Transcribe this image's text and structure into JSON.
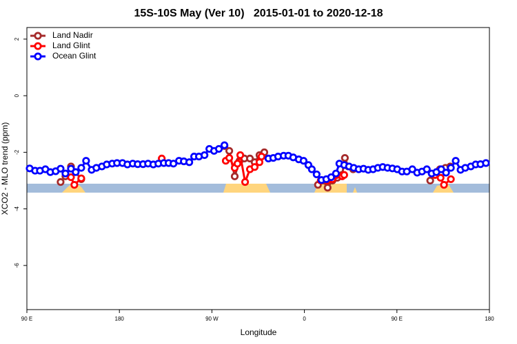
{
  "chart_data": {
    "type": "line",
    "title": "15S-10S May (Ver 10)   2015-01-01 to 2020-12-18",
    "x_label": "Longitude",
    "y_label": "XCO2 - MLO trend (ppm)",
    "xlim": [
      90,
      540
    ],
    "xticks": [
      {
        "value": 90,
        "label": "90 E"
      },
      {
        "value": 180,
        "label": "180"
      },
      {
        "value": 270,
        "label": "90 W"
      },
      {
        "value": 360,
        "label": "0"
      },
      {
        "value": 450,
        "label": "90 E"
      },
      {
        "value": 540,
        "label": "180"
      }
    ],
    "ylim": [
      -7.56,
      2.41
    ],
    "yticks": [
      -6,
      -4,
      -2,
      0,
      2
    ],
    "legend": "top-left",
    "series": [
      {
        "name": "Land Nadir",
        "color": "#a52a2a",
        "x": [
          122.8,
          127.5,
          132.9,
          142.9,
          null,
          282.2,
          286.9,
          292.2,
          296.9,
          301.6,
          307,
          311.6,
          316.3,
          321,
          null,
          373.2,
          377.9,
          382.6,
          387.3,
          392,
          396.7,
          399.4,
          402.7,
          407.4,
          null,
          482.4,
          487.1,
          491.8,
          497.2,
          501.9
        ],
        "values": [
          -3.05,
          -2.85,
          -2.5,
          -2.95,
          null,
          -1.78,
          -1.95,
          -2.85,
          -2.3,
          -2.22,
          -2.22,
          -2.35,
          -2.1,
          -2.0,
          null,
          -3.15,
          -3.0,
          -3.25,
          -3.0,
          -2.9,
          -2.8,
          -2.2,
          -2.5,
          -2.6,
          null,
          -3.0,
          -2.8,
          -2.6,
          -2.55,
          -2.5
        ]
      },
      {
        "name": "Land Glint",
        "color": "#ff0000",
        "x": [
          132.9,
          136.2,
          142.9,
          null,
          221.2,
          null,
          283.5,
          286.9,
          292.2,
          294.9,
          297.6,
          302.3,
          307,
          311.6,
          316.3,
          318.3,
          null,
          375.9,
          382.6,
          387.3,
          396.7,
          398.7,
          null,
          487.1,
          492.5,
          495.8,
          502.5
        ],
        "values": [
          -2.88,
          -3.15,
          -2.92,
          null,
          -2.22,
          null,
          -2.3,
          -2.2,
          -2.55,
          -2.4,
          -2.1,
          -3.05,
          -2.6,
          -2.52,
          -2.35,
          -2.15,
          null,
          -3.0,
          -3.0,
          -2.95,
          -2.85,
          -2.8,
          null,
          -2.8,
          -2.9,
          -3.15,
          -2.95
        ]
      },
      {
        "name": "Ocean Glint",
        "color": "#0000ff",
        "x": [
          92.7,
          98,
          102.7,
          108,
          112.8,
          118,
          122.8,
          127.5,
          132.9,
          137.5,
          142.9,
          147.6,
          153,
          157.6,
          163,
          167.7,
          173,
          177.7,
          183,
          187.8,
          193,
          197.8,
          203,
          207.9,
          213,
          217.9,
          223.2,
          227.9,
          232.6,
          238,
          242.7,
          248,
          252.7,
          257.4,
          262.8,
          267.5,
          272.1,
          276.8,
          282.2,
          null,
          325,
          329.7,
          334.4,
          339.8,
          344.4,
          349.1,
          354.5,
          359.2,
          363.9,
          367.2,
          371.9,
          376.6,
          381.3,
          386,
          390.7,
          394,
          398.7,
          403.4,
          408,
          412.8,
          417.5,
          422.1,
          426.8,
          431.5,
          436.2,
          440.9,
          445.6,
          450.3,
          455,
          459.6,
          465,
          469.7,
          474.4,
          479.1,
          483.8,
          488.4,
          493.1,
          497.8,
          502.5,
          507.2,
          511.9,
          516.5,
          521.9,
          526.6,
          531.3,
          536.6
        ],
        "values": [
          -2.57,
          -2.65,
          -2.65,
          -2.6,
          -2.7,
          -2.67,
          -2.58,
          -2.75,
          -2.58,
          -2.7,
          -2.55,
          -2.3,
          -2.62,
          -2.55,
          -2.5,
          -2.43,
          -2.4,
          -2.38,
          -2.38,
          -2.43,
          -2.4,
          -2.42,
          -2.42,
          -2.4,
          -2.43,
          -2.4,
          -2.38,
          -2.38,
          -2.4,
          -2.3,
          -2.32,
          -2.35,
          -2.15,
          -2.15,
          -2.1,
          -1.88,
          -1.95,
          -1.88,
          -1.75,
          null,
          -2.22,
          -2.2,
          -2.15,
          -2.12,
          -2.12,
          -2.18,
          -2.25,
          -2.3,
          -2.45,
          -2.6,
          -2.78,
          -2.98,
          -2.95,
          -2.88,
          -2.75,
          -2.4,
          -2.45,
          -2.5,
          -2.55,
          -2.6,
          -2.58,
          -2.62,
          -2.6,
          -2.55,
          -2.52,
          -2.55,
          -2.57,
          -2.6,
          -2.68,
          -2.68,
          -2.6,
          -2.72,
          -2.68,
          -2.6,
          -2.75,
          -2.7,
          -2.6,
          -2.72,
          -2.55,
          -2.3,
          -2.62,
          -2.55,
          -2.5,
          -2.43,
          -2.42,
          -2.38
        ]
      }
    ]
  }
}
